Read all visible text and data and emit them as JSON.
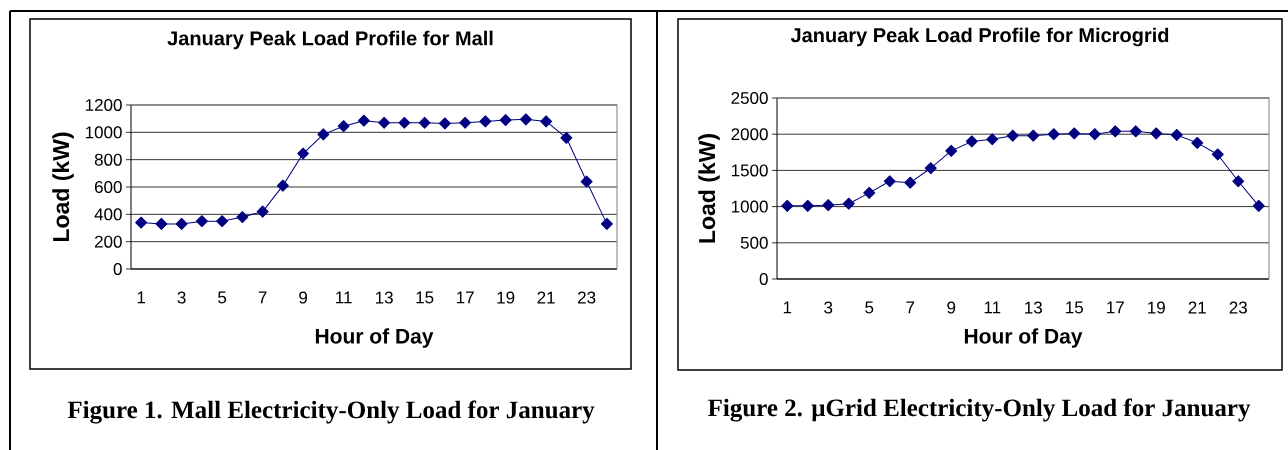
{
  "chart_data": [
    {
      "type": "line",
      "title": "January Peak Load Profile for Mall",
      "xlabel": "Hour of Day",
      "ylabel": "Load (kW)",
      "categories": [
        "1",
        null,
        "3",
        null,
        "5",
        null,
        "7",
        null,
        "9",
        null,
        "11",
        null,
        "13",
        null,
        "15",
        null,
        "17",
        null,
        "19",
        null,
        "21",
        null,
        "23",
        null
      ],
      "series": [
        {
          "color": "#000080",
          "values": [
            340,
            330,
            330,
            350,
            350,
            380,
            420,
            610,
            845,
            985,
            1045,
            1085,
            1070,
            1070,
            1070,
            1065,
            1070,
            1080,
            1090,
            1095,
            1080,
            960,
            640,
            330
          ]
        }
      ],
      "ylim": [
        0,
        1200
      ],
      "yticks": [
        0,
        200,
        400,
        600,
        800,
        1000,
        1200
      ],
      "grid": "y",
      "marker": "diamond",
      "line_style": "solid",
      "annotations": [
        "Figure 1.  Mall Electricity-Only Load for January"
      ]
    },
    {
      "type": "line",
      "title": "January Peak Load Profile for Microgrid",
      "xlabel": "Hour of Day",
      "ylabel": "Load (kW)",
      "categories": [
        "1",
        null,
        "3",
        null,
        "5",
        null,
        "7",
        null,
        "9",
        null,
        "11",
        null,
        "13",
        null,
        "15",
        null,
        "17",
        null,
        "19",
        null,
        "21",
        null,
        "23",
        null
      ],
      "series": [
        {
          "color": "#000080",
          "values": [
            1010,
            1010,
            1020,
            1040,
            1190,
            1350,
            1330,
            1530,
            1770,
            1900,
            1930,
            1980,
            1980,
            2000,
            2010,
            2000,
            2040,
            2040,
            2010,
            1990,
            1880,
            1720,
            1350,
            1010
          ]
        }
      ],
      "ylim": [
        0,
        2500
      ],
      "yticks": [
        0,
        500,
        1000,
        1500,
        2000,
        2500
      ],
      "grid": "y",
      "marker": "diamond",
      "line_style": "solid",
      "annotations": [
        "Figure 2. μGrid Electricity-Only Load for January"
      ]
    }
  ]
}
